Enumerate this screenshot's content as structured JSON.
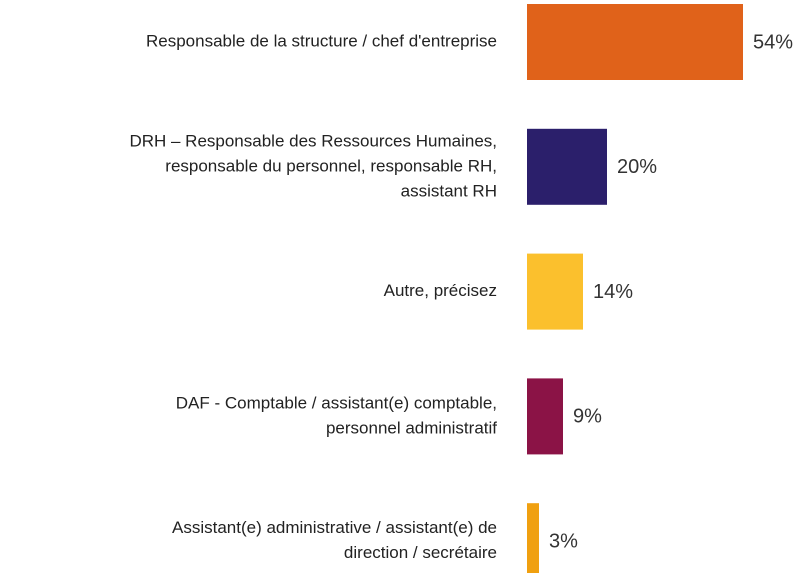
{
  "chart_data": {
    "type": "bar",
    "orientation": "horizontal",
    "categories": [
      [
        "Responsable de la structure / chef d'entreprise"
      ],
      [
        "DRH – Responsable des Ressources Humaines,",
        "responsable du personnel, responsable RH,",
        "assistant RH"
      ],
      [
        "Autre, précisez"
      ],
      [
        "DAF - Comptable / assistant(e) comptable,",
        "personnel administratif"
      ],
      [
        "Assistant(e) administrative / assistant(e) de",
        "direction / secrétaire"
      ]
    ],
    "values": [
      54,
      20,
      14,
      9,
      3
    ],
    "value_labels": [
      "54%",
      "20%",
      "14%",
      "9%",
      "3%"
    ],
    "colors": [
      "#e0621a",
      "#2b1f6b",
      "#fbc02d",
      "#8b1346",
      "#f0a010"
    ]
  }
}
